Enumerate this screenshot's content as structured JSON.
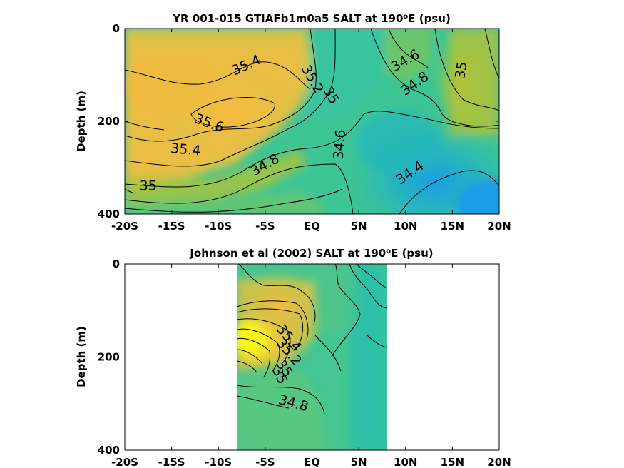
{
  "colors": {
    "salinity_low": "#1e9be6",
    "salinity_mid_low": "#23b9b0",
    "salinity_mid": "#4cc58a",
    "salinity_mid_high": "#a9c83e",
    "salinity_high": "#f6b83f",
    "salinity_max": "#f8f31c",
    "contour": "#000000",
    "axes": "#000000"
  },
  "chart_data": [
    {
      "type": "heatmap",
      "title_main": "YR 001-015 GTIAFb1m0a5 SALT at 190",
      "title_sup": "o",
      "title_end": "E (psu)",
      "xlabel": "",
      "ylabel": "Depth (m)",
      "x_ticks": [
        "-20S",
        "-15S",
        "-10S",
        "-5S",
        "EQ",
        "5N",
        "10N",
        "15N",
        "20N"
      ],
      "x_tick_values": [
        -20,
        -15,
        -10,
        -5,
        0,
        5,
        10,
        15,
        20
      ],
      "y_ticks": [
        "0",
        "200",
        "400"
      ],
      "y_tick_values": [
        0,
        200,
        400
      ],
      "xlim": [
        -20,
        20
      ],
      "ylim": [
        0,
        400
      ],
      "y_reversed": true,
      "data_extent_x": [
        -20,
        20
      ],
      "contour_labels": [
        {
          "text": "35.4",
          "x": -7,
          "y": 80
        },
        {
          "text": "35.2",
          "x": 0,
          "y": 110
        },
        {
          "text": "35",
          "x": 2,
          "y": 145
        },
        {
          "text": "34.6",
          "x": 10,
          "y": 70
        },
        {
          "text": "34.8",
          "x": 11,
          "y": 120
        },
        {
          "text": "35",
          "x": 16,
          "y": 90
        },
        {
          "text": "35.6",
          "x": -11,
          "y": 205
        },
        {
          "text": "35.4",
          "x": -13.5,
          "y": 262
        },
        {
          "text": "34.8",
          "x": -5,
          "y": 295
        },
        {
          "text": "34.6",
          "x": 3,
          "y": 250
        },
        {
          "text": "34.4",
          "x": 10.5,
          "y": 312
        },
        {
          "text": "35",
          "x": -17.5,
          "y": 340
        }
      ]
    },
    {
      "type": "heatmap",
      "title_main": "Johnson et al (2002) SALT at 190",
      "title_sup": "o",
      "title_end": "E (psu)",
      "xlabel": "",
      "ylabel": "Depth (m)",
      "x_ticks": [
        "-20S",
        "-15S",
        "-10S",
        "-5S",
        "EQ",
        "5N",
        "10N",
        "15N",
        "20N"
      ],
      "x_tick_values": [
        -20,
        -15,
        -10,
        -5,
        0,
        5,
        10,
        15,
        20
      ],
      "y_ticks": [
        "0",
        "200",
        "400"
      ],
      "y_tick_values": [
        0,
        200,
        400
      ],
      "xlim": [
        -20,
        20
      ],
      "ylim": [
        0,
        400
      ],
      "y_reversed": true,
      "data_extent_x": [
        -8,
        8
      ],
      "contour_labels": [
        {
          "text": "35.4",
          "x": -2.5,
          "y": 160
        },
        {
          "text": "35.2",
          "x": -2.5,
          "y": 190
        },
        {
          "text": "35",
          "x": -3,
          "y": 225
        },
        {
          "text": "35",
          "x": -3.5,
          "y": 240
        },
        {
          "text": "34.8",
          "x": -2,
          "y": 300
        }
      ]
    }
  ]
}
